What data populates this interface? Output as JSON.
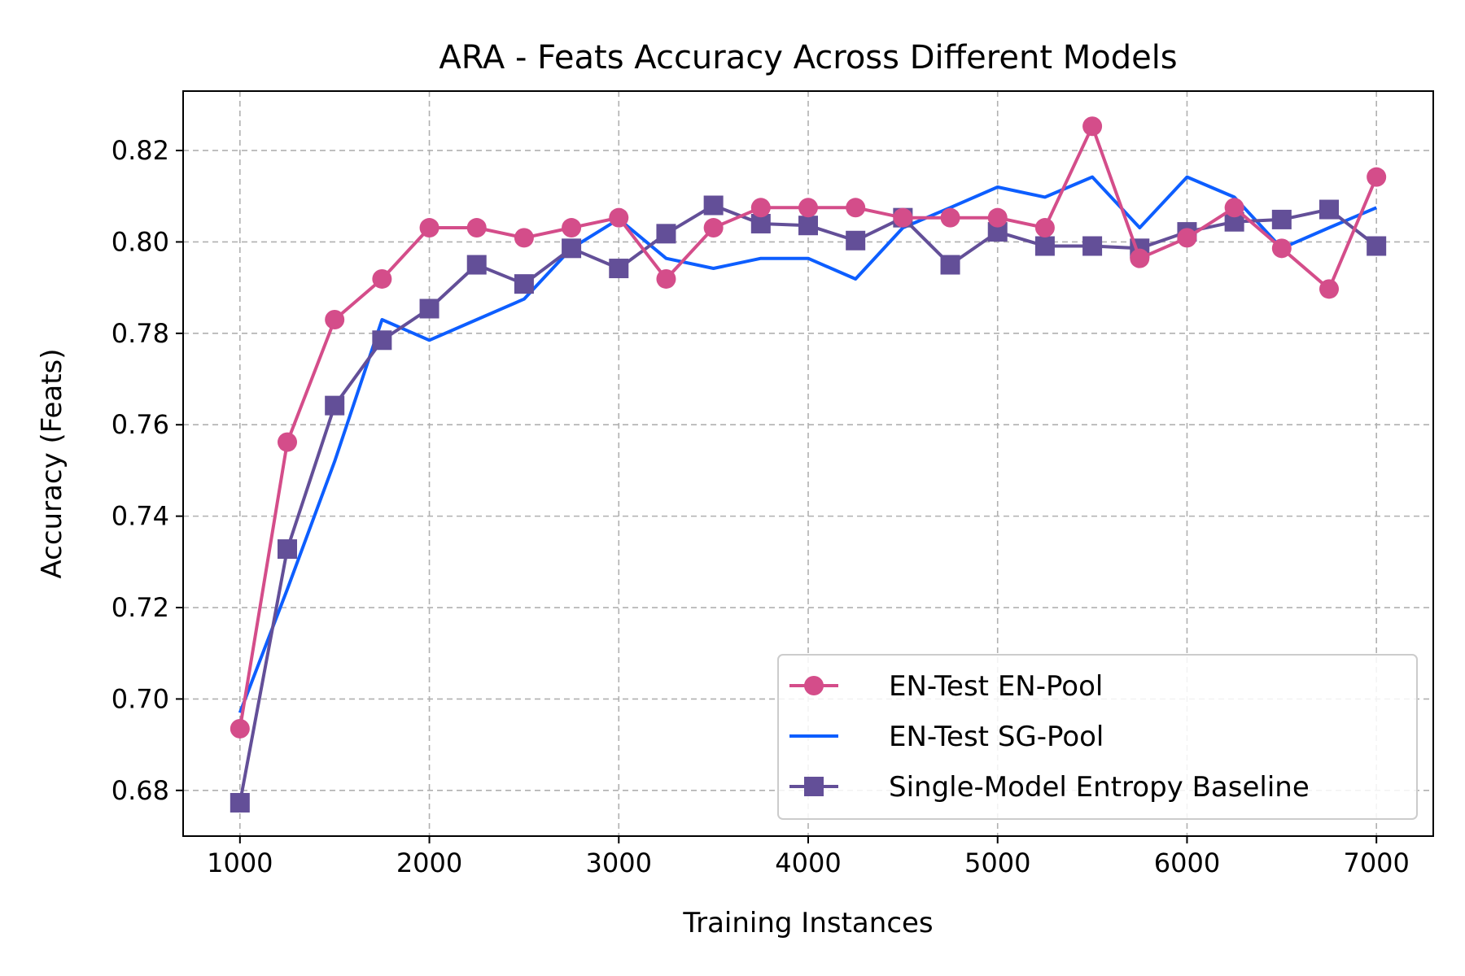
{
  "chart_data": {
    "type": "line",
    "title": "ARA - Feats Accuracy Across Different Models",
    "xlabel": "Training Instances",
    "ylabel": "Accuracy (Feats)",
    "xlim": [
      700,
      7300
    ],
    "ylim": [
      0.67,
      0.833
    ],
    "xticks": [
      1000,
      2000,
      3000,
      4000,
      5000,
      6000,
      7000
    ],
    "xtick_labels": [
      "1000",
      "2000",
      "3000",
      "4000",
      "5000",
      "6000",
      "7000"
    ],
    "yticks": [
      0.68,
      0.7,
      0.72,
      0.74,
      0.76,
      0.78,
      0.8,
      0.82
    ],
    "ytick_labels": [
      "0.68",
      "0.70",
      "0.72",
      "0.74",
      "0.76",
      "0.78",
      "0.80",
      "0.82"
    ],
    "grid": true,
    "legend_position": "lower-right",
    "x": [
      1000,
      1250,
      1500,
      1750,
      2000,
      2250,
      2500,
      2750,
      3000,
      3250,
      3500,
      3750,
      4000,
      4250,
      4500,
      4750,
      5000,
      5250,
      5500,
      5750,
      6000,
      6250,
      6500,
      6750,
      7000
    ],
    "series": [
      {
        "name": "EN-Test EN-Pool",
        "color": "#d44d8a",
        "marker": "circle",
        "values": [
          0.6935,
          0.7562,
          0.783,
          0.7919,
          0.8031,
          0.8031,
          0.8009,
          0.8031,
          0.8053,
          0.7919,
          0.8031,
          0.8075,
          0.8075,
          0.8075,
          0.8053,
          0.8053,
          0.8053,
          0.8031,
          0.8253,
          0.7964,
          0.8009,
          0.8075,
          0.7986,
          0.7897,
          0.8142
        ]
      },
      {
        "name": "EN-Test SG-Pool",
        "color": "#0d5eff",
        "marker": "none",
        "values": [
          0.697,
          0.724,
          0.752,
          0.783,
          0.7785,
          0.783,
          0.7875,
          0.7986,
          0.805,
          0.7964,
          0.7942,
          0.7964,
          0.7964,
          0.7919,
          0.8031,
          0.8075,
          0.812,
          0.8098,
          0.8142,
          0.8031,
          0.8142,
          0.8098,
          0.7986,
          0.8031,
          0.8075
        ]
      },
      {
        "name": "Single-Model Entropy Baseline",
        "color": "#634f98",
        "marker": "square",
        "values": [
          0.6773,
          0.7328,
          0.7642,
          0.7785,
          0.7854,
          0.795,
          0.7908,
          0.7986,
          0.7942,
          0.8018,
          0.808,
          0.804,
          0.8036,
          0.8003,
          0.8053,
          0.795,
          0.8022,
          0.7991,
          0.7991,
          0.7986,
          0.8022,
          0.8044,
          0.8049,
          0.8071,
          0.7991
        ]
      }
    ]
  }
}
